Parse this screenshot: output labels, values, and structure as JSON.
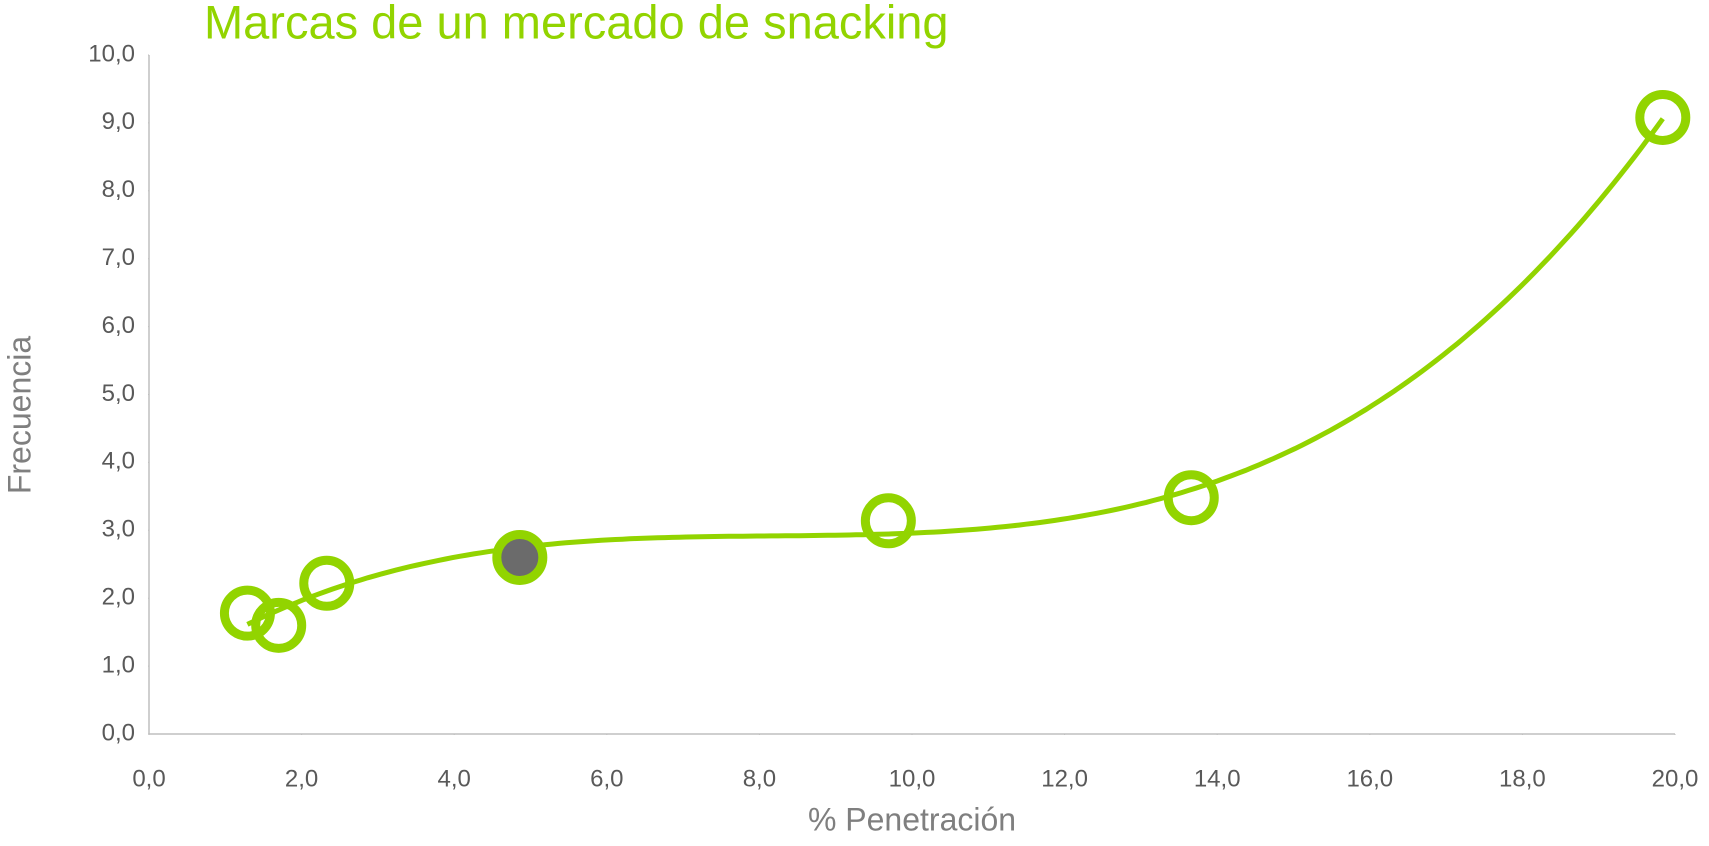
{
  "chart_data": {
    "type": "scatter",
    "title": "Marcas de un mercado de snacking",
    "x_label": "% Penetración",
    "y_label": "Frecuencia",
    "series": [
      {
        "color": "#92d400",
        "x": [
          1.29,
          1.7,
          2.33,
          4.86,
          9.69,
          13.66,
          19.84
        ],
        "values": [
          1.78,
          1.6,
          2.22,
          2.6,
          3.14,
          3.48,
          9.08
        ]
      }
    ],
    "highlight": {
      "index": 3,
      "color": "#6b6b6b"
    },
    "trendline": {
      "type": "polynomial",
      "order": 3
    },
    "xlim": [
      0,
      20
    ],
    "xticks": [
      {
        "value": 0,
        "label": "0,0"
      },
      {
        "value": 2,
        "label": "2,0"
      },
      {
        "value": 4,
        "label": "4,0"
      },
      {
        "value": 6,
        "label": "6,0"
      },
      {
        "value": 8,
        "label": "8,0"
      },
      {
        "value": 10,
        "label": "10,0"
      },
      {
        "value": 12,
        "label": "12,0"
      },
      {
        "value": 14,
        "label": "14,0"
      },
      {
        "value": 16,
        "label": "16,0"
      },
      {
        "value": 18,
        "label": "18,0"
      },
      {
        "value": 20,
        "label": "20,0"
      }
    ],
    "ylim": [
      0,
      10
    ],
    "yticks": [
      {
        "value": 0,
        "label": "0,0"
      },
      {
        "value": 1,
        "label": "1,0"
      },
      {
        "value": 2,
        "label": "2,0"
      },
      {
        "value": 3,
        "label": "3,0"
      },
      {
        "value": 4,
        "label": "4,0"
      },
      {
        "value": 5,
        "label": "5,0"
      },
      {
        "value": 6,
        "label": "6,0"
      },
      {
        "value": 7,
        "label": "7,0"
      },
      {
        "value": 8,
        "label": "8,0"
      },
      {
        "value": 9,
        "label": "9,0"
      },
      {
        "value": 10,
        "label": "10,0"
      }
    ],
    "grid": false
  }
}
